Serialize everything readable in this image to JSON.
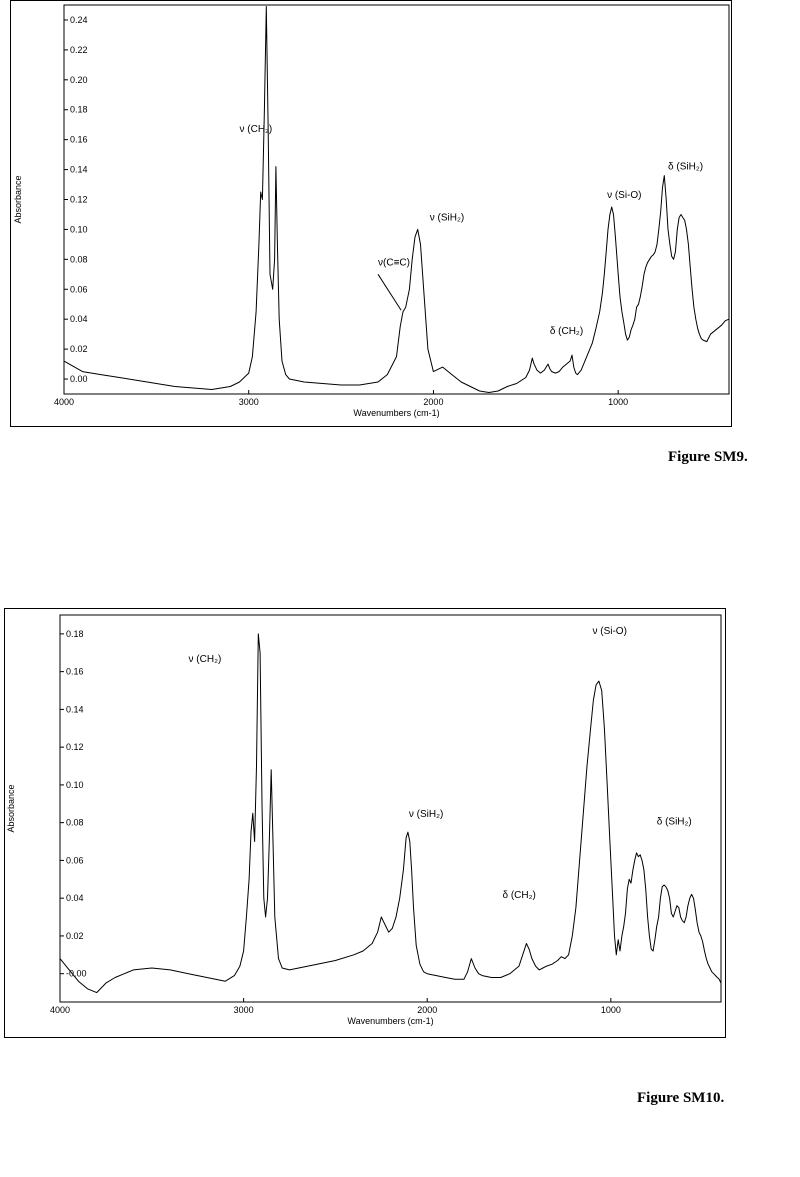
{
  "figures": [
    {
      "caption": "Figure SM9."
    },
    {
      "caption": "Figure SM10."
    }
  ],
  "chart_data": [
    {
      "type": "line",
      "title": "",
      "xlabel": "Wavenumbers (cm-1)",
      "ylabel": "Absorbance",
      "xlim": [
        4000,
        400
      ],
      "ylim": [
        -0.01,
        0.25
      ],
      "x_ticks": [
        4000,
        3000,
        2000,
        1000
      ],
      "x_tick_labels": [
        "4000",
        "3000",
        "2000",
        "1000"
      ],
      "y_ticks": [
        0.0,
        0.02,
        0.04,
        0.06,
        0.08,
        0.1,
        0.12,
        0.14,
        0.16,
        0.18,
        0.2,
        0.22,
        0.24
      ],
      "y_tick_labels": [
        "0.00",
        "0.02",
        "0.04",
        "0.06",
        "0.08",
        "0.10",
        "0.12",
        "0.14",
        "0.16",
        "0.18",
        "0.20",
        "0.22",
        "0.24"
      ],
      "grid": false,
      "series": [
        {
          "x": [
            4000,
            3900,
            3800,
            3700,
            3600,
            3500,
            3400,
            3300,
            3200,
            3100,
            3050,
            3000,
            2980,
            2960,
            2945,
            2935,
            2926,
            2915,
            2905,
            2895,
            2885,
            2870,
            2860,
            2853,
            2845,
            2835,
            2820,
            2800,
            2780,
            2700,
            2600,
            2500,
            2400,
            2300,
            2250,
            2200,
            2180,
            2165,
            2150,
            2130,
            2115,
            2100,
            2085,
            2070,
            2050,
            2030,
            2000,
            1950,
            1900,
            1850,
            1800,
            1750,
            1700,
            1650,
            1600,
            1550,
            1500,
            1480,
            1465,
            1455,
            1440,
            1420,
            1400,
            1380,
            1370,
            1360,
            1340,
            1320,
            1300,
            1280,
            1260,
            1250,
            1240,
            1230,
            1220,
            1200,
            1180,
            1160,
            1140,
            1120,
            1100,
            1085,
            1075,
            1065,
            1055,
            1045,
            1035,
            1025,
            1015,
            1000,
            990,
            980,
            970,
            960,
            950,
            940,
            930,
            920,
            910,
            900,
            890,
            880,
            870,
            860,
            850,
            840,
            830,
            820,
            810,
            800,
            790,
            780,
            770,
            760,
            750,
            740,
            730,
            720,
            710,
            700,
            690,
            680,
            670,
            660,
            650,
            640,
            630,
            620,
            610,
            600,
            590,
            580,
            570,
            560,
            550,
            540,
            520,
            500,
            480,
            460,
            440,
            420,
            400
          ],
          "y": [
            0.012,
            0.005,
            0.003,
            0.001,
            -0.001,
            -0.003,
            -0.005,
            -0.006,
            -0.007,
            -0.005,
            -0.002,
            0.004,
            0.015,
            0.045,
            0.09,
            0.125,
            0.12,
            0.18,
            0.249,
            0.17,
            0.07,
            0.06,
            0.08,
            0.142,
            0.09,
            0.04,
            0.012,
            0.003,
            0.0,
            -0.002,
            -0.003,
            -0.004,
            -0.004,
            -0.002,
            0.003,
            0.015,
            0.035,
            0.045,
            0.048,
            0.06,
            0.08,
            0.095,
            0.1,
            0.09,
            0.055,
            0.02,
            0.005,
            0.008,
            0.003,
            -0.002,
            -0.005,
            -0.008,
            -0.009,
            -0.008,
            -0.005,
            -0.003,
            0.001,
            0.006,
            0.014,
            0.01,
            0.006,
            0.004,
            0.006,
            0.01,
            0.007,
            0.005,
            0.004,
            0.005,
            0.008,
            0.01,
            0.012,
            0.016,
            0.008,
            0.004,
            0.003,
            0.006,
            0.012,
            0.018,
            0.024,
            0.034,
            0.045,
            0.058,
            0.07,
            0.085,
            0.1,
            0.11,
            0.115,
            0.11,
            0.095,
            0.07,
            0.055,
            0.045,
            0.038,
            0.03,
            0.026,
            0.028,
            0.033,
            0.036,
            0.04,
            0.048,
            0.05,
            0.055,
            0.062,
            0.07,
            0.075,
            0.078,
            0.08,
            0.082,
            0.083,
            0.085,
            0.09,
            0.1,
            0.112,
            0.128,
            0.136,
            0.12,
            0.1,
            0.09,
            0.082,
            0.08,
            0.085,
            0.1,
            0.108,
            0.11,
            0.108,
            0.106,
            0.1,
            0.09,
            0.075,
            0.06,
            0.048,
            0.04,
            0.034,
            0.03,
            0.027,
            0.026,
            0.025,
            0.03,
            0.032,
            0.034,
            0.036,
            0.039,
            0.04
          ]
        }
      ],
      "annotations": [
        {
          "text": "ν (CH₂)",
          "x": 3050,
          "y": 0.165
        },
        {
          "text": "ν(C≡C)",
          "x": 2300,
          "y": 0.076
        },
        {
          "text": "ν (SiH₂)",
          "x": 2020,
          "y": 0.106
        },
        {
          "text": "δ (CH₂)",
          "x": 1370,
          "y": 0.03
        },
        {
          "text": "ν (Si-O)",
          "x": 1060,
          "y": 0.121
        },
        {
          "text": "δ (SiH₂)",
          "x": 730,
          "y": 0.14
        }
      ],
      "arrow": {
        "from": [
          2300,
          0.07
        ],
        "to": [
          2175,
          0.046
        ]
      }
    },
    {
      "type": "line",
      "title": "",
      "xlabel": "Wavenumbers (cm-1)",
      "ylabel": "Absorbance",
      "xlim": [
        4000,
        400
      ],
      "ylim": [
        -0.015,
        0.19
      ],
      "x_ticks": [
        4000,
        3000,
        2000,
        1000
      ],
      "x_tick_labels": [
        "4000",
        "3000",
        "2000",
        "1000"
      ],
      "y_ticks": [
        0.0,
        0.02,
        0.04,
        0.06,
        0.08,
        0.1,
        0.12,
        0.14,
        0.16,
        0.18
      ],
      "y_tick_labels": [
        "-0.00",
        "0.02",
        "0.04",
        "0.06",
        "0.08",
        "0.10",
        "0.12",
        "0.14",
        "0.16",
        "0.18"
      ],
      "grid": false,
      "series": [
        {
          "x": [
            4000,
            3950,
            3900,
            3850,
            3800,
            3750,
            3700,
            3650,
            3600,
            3500,
            3400,
            3300,
            3200,
            3100,
            3050,
            3020,
            3000,
            2985,
            2970,
            2960,
            2950,
            2940,
            2930,
            2920,
            2910,
            2900,
            2890,
            2880,
            2870,
            2860,
            2850,
            2840,
            2830,
            2810,
            2790,
            2750,
            2700,
            2600,
            2500,
            2400,
            2350,
            2300,
            2270,
            2250,
            2230,
            2210,
            2190,
            2170,
            2150,
            2130,
            2115,
            2105,
            2095,
            2085,
            2075,
            2060,
            2040,
            2020,
            2000,
            1950,
            1900,
            1850,
            1800,
            1780,
            1760,
            1740,
            1720,
            1700,
            1650,
            1600,
            1550,
            1500,
            1480,
            1460,
            1445,
            1430,
            1410,
            1390,
            1370,
            1350,
            1320,
            1290,
            1270,
            1250,
            1230,
            1210,
            1190,
            1170,
            1150,
            1130,
            1110,
            1095,
            1080,
            1065,
            1050,
            1035,
            1020,
            1005,
            990,
            980,
            970,
            960,
            950,
            940,
            930,
            920,
            910,
            900,
            890,
            880,
            870,
            860,
            850,
            840,
            830,
            820,
            810,
            800,
            790,
            780,
            770,
            760,
            750,
            740,
            730,
            720,
            710,
            700,
            690,
            680,
            670,
            660,
            650,
            640,
            630,
            620,
            610,
            600,
            590,
            580,
            570,
            560,
            550,
            540,
            530,
            520,
            510,
            500,
            490,
            480,
            470,
            460,
            450,
            440,
            430,
            420,
            410,
            400
          ],
          "y": [
            0.008,
            0.002,
            -0.004,
            -0.008,
            -0.01,
            -0.005,
            -0.002,
            0.0,
            0.002,
            0.003,
            0.002,
            0.0,
            -0.002,
            -0.004,
            -0.001,
            0.004,
            0.012,
            0.03,
            0.05,
            0.075,
            0.085,
            0.07,
            0.11,
            0.18,
            0.17,
            0.09,
            0.04,
            0.03,
            0.04,
            0.07,
            0.108,
            0.07,
            0.03,
            0.008,
            0.003,
            0.002,
            0.003,
            0.005,
            0.007,
            0.01,
            0.012,
            0.016,
            0.022,
            0.03,
            0.026,
            0.022,
            0.024,
            0.03,
            0.04,
            0.055,
            0.072,
            0.075,
            0.07,
            0.055,
            0.035,
            0.015,
            0.005,
            0.001,
            0.0,
            -0.001,
            -0.002,
            -0.003,
            -0.003,
            0.001,
            0.008,
            0.003,
            0.0,
            -0.001,
            -0.002,
            -0.002,
            0.0,
            0.004,
            0.01,
            0.016,
            0.013,
            0.008,
            0.004,
            0.002,
            0.003,
            0.004,
            0.005,
            0.007,
            0.009,
            0.008,
            0.01,
            0.02,
            0.035,
            0.06,
            0.085,
            0.11,
            0.13,
            0.145,
            0.153,
            0.155,
            0.15,
            0.13,
            0.1,
            0.07,
            0.04,
            0.02,
            0.01,
            0.018,
            0.012,
            0.02,
            0.025,
            0.032,
            0.045,
            0.05,
            0.048,
            0.055,
            0.06,
            0.064,
            0.062,
            0.063,
            0.06,
            0.055,
            0.045,
            0.03,
            0.02,
            0.013,
            0.012,
            0.018,
            0.025,
            0.03,
            0.04,
            0.046,
            0.047,
            0.046,
            0.044,
            0.04,
            0.032,
            0.03,
            0.033,
            0.036,
            0.035,
            0.03,
            0.028,
            0.027,
            0.03,
            0.036,
            0.04,
            0.042,
            0.04,
            0.034,
            0.027,
            0.022,
            0.02,
            0.017,
            0.012,
            0.008,
            0.005,
            0.003,
            0.001,
            0.0,
            -0.001,
            -0.002,
            -0.003,
            -0.005
          ]
        }
      ],
      "annotations": [
        {
          "text": "ν (CH₂)",
          "x": 3300,
          "y": 0.165
        },
        {
          "text": "ν (SiH₂)",
          "x": 2100,
          "y": 0.083
        },
        {
          "text": "δ (CH₂)",
          "x": 1590,
          "y": 0.04
        },
        {
          "text": "ν (Si-O)",
          "x": 1100,
          "y": 0.18
        },
        {
          "text": "δ (SiH₂)",
          "x": 750,
          "y": 0.079
        }
      ]
    }
  ]
}
